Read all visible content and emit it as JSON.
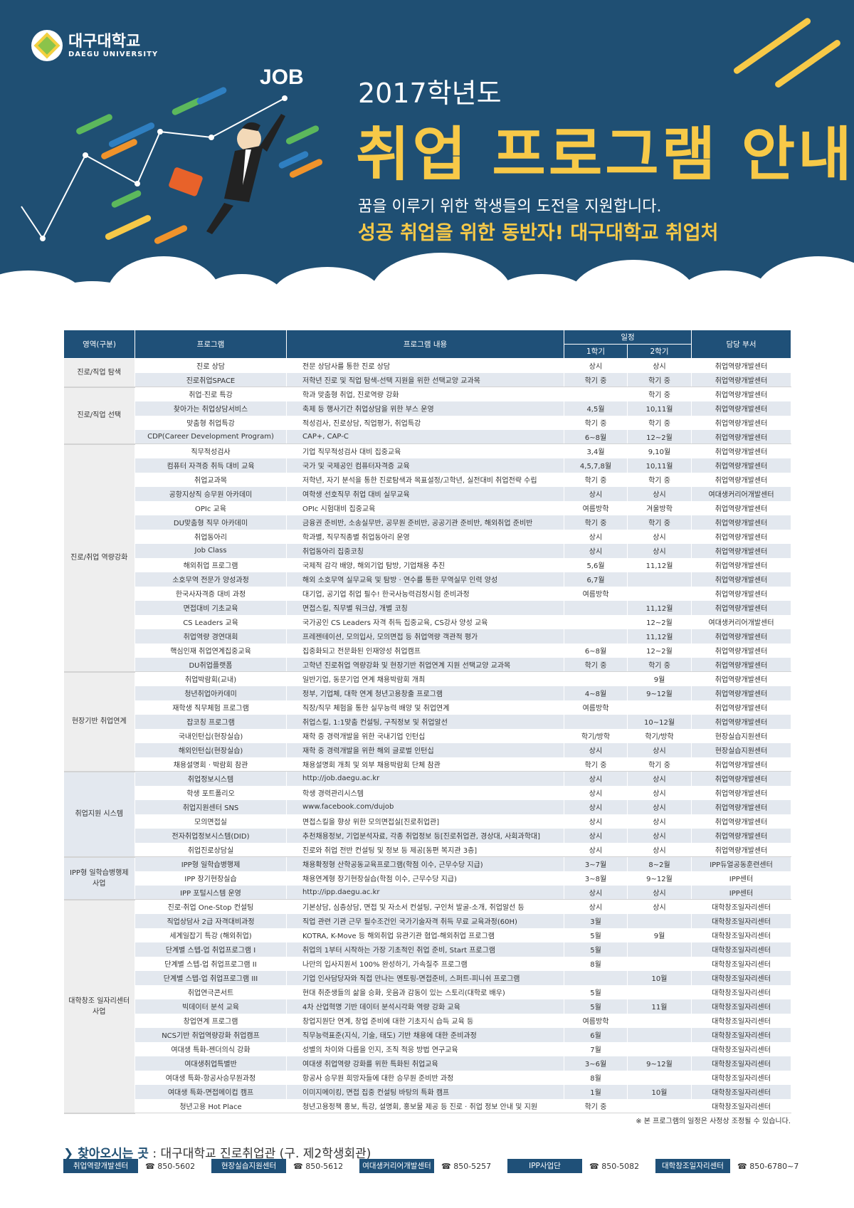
{
  "header": {
    "logo_ko": "대구대학교",
    "logo_en": "DAEGU UNIVERSITY",
    "job_label": "JOB",
    "year": "2017학년도",
    "title": "취업 프로그램 안내",
    "subtitle": "꿈을 이루기 위한 학생들의 도전을 지원합니다.",
    "tagline": "성공 취업을 위한 동반자! 대구대학교 취업처"
  },
  "colors": {
    "navy": "#1f4f73",
    "table_header": "#1f5078",
    "accent_yellow": "#f7c948",
    "row_alt": "#e3e8ef"
  },
  "table": {
    "headers": {
      "area": "영역(구분)",
      "program": "프로그램",
      "content": "프로그램 내용",
      "schedule": "일정",
      "sem1": "1학기",
      "sem2": "2학기",
      "dept": "담당 부서"
    },
    "groups": [
      {
        "name": "진로/직업 탐색",
        "rows": [
          [
            "진로 상담",
            "전문 상담사를 통한 진로 상담",
            "상시",
            "상시",
            "취업역량개발센터"
          ],
          [
            "진로취업SPACE",
            "저학년 진로 및 직업 탐색-선택 지원을 위한 선택교양 교과목",
            "학기 중",
            "학기 중",
            "취업역량개발센터"
          ]
        ]
      },
      {
        "name": "진로/직업 선택",
        "rows": [
          [
            "취업·진로 특강",
            "학과 맞춤형 취업, 진로역량 강화",
            "",
            "학기 중",
            "취업역량개발센터"
          ],
          [
            "찾아가는 취업상담서비스",
            "축제 등 행사기간 취업상담을 위한 부스 운영",
            "4,5월",
            "10,11월",
            "취업역량개발센터"
          ],
          [
            "맞춤형 취업특강",
            "적성검사, 진로상담, 직업평가, 취업특강",
            "학기 중",
            "학기 중",
            "취업역량개발센터"
          ],
          [
            "CDP(Career Development Program)",
            "CAP+, CAP-C",
            "6~8월",
            "12~2월",
            "취업역량개발센터"
          ]
        ]
      },
      {
        "name": "진로/취업 역량강화",
        "rows": [
          [
            "직무적성검사",
            "기업 직무적성검사 대비 집중교육",
            "3,4월",
            "9,10월",
            "취업역량개발센터"
          ],
          [
            "컴퓨터 자격증 취득 대비 교육",
            "국가 및 국제공인 컴퓨터자격증 교육",
            "4,5,7,8월",
            "10,11월",
            "취업역량개발센터"
          ],
          [
            "취업교과목",
            "저학년, 자기 분석을 통한 진로탐색과 목표설정/고학년, 실전대비 취업전략 수립",
            "학기 중",
            "학기 중",
            "취업역량개발센터"
          ],
          [
            "공항지상직 승무원 아카데미",
            "여학생 선호직무 취업 대비 실무교육",
            "상시",
            "상시",
            "여대생커리어개발센터"
          ],
          [
            "OPIc 교육",
            "OPIc 시험대비 집중교육",
            "여름방학",
            "겨울방학",
            "취업역량개발센터"
          ],
          [
            "DU맞춤형 직무 아카데미",
            "금융권 준비반, 소송실무반, 공무원 준비반, 공공기관 준비반, 해외취업 준비반",
            "학기 중",
            "학기 중",
            "취업역량개발센터"
          ],
          [
            "취업동아리",
            "학과별, 직무직종별 취업동아리 운영",
            "상시",
            "상시",
            "취업역량개발센터"
          ],
          [
            "Job Class",
            "취업동아리 집중코칭",
            "상시",
            "상시",
            "취업역량개발센터"
          ],
          [
            "해외취업 프로그램",
            "국제적 감각 배양, 해외기업 탐방, 기업채용 추진",
            "5,6월",
            "11,12월",
            "취업역량개발센터"
          ],
          [
            "소호무역 전문가 양성과정",
            "해외 소호무역 실무교육 및 탐방 · 연수를 통한 무역실무 인력 양성",
            "6,7월",
            "",
            "취업역량개발센터"
          ],
          [
            "한국사자격증 대비 과정",
            "대기업, 공기업 취업 필수! 한국사능력검정시험 준비과정",
            "여름방학",
            "",
            "취업역량개발센터"
          ],
          [
            "면접대비 기초교육",
            "면접스킬, 직무별 워크샵, 개별 코칭",
            "",
            "11,12월",
            "취업역량개발센터"
          ],
          [
            "CS Leaders 교육",
            "국가공인 CS Leaders 자격 취득 집중교육, CS강사 양성 교육",
            "",
            "12~2월",
            "여대생커리어개발센터"
          ],
          [
            "취업역량 경연대회",
            "프레젠테이션, 모의입사, 모의면접 등 취업역량 객관적 평가",
            "",
            "11,12월",
            "취업역량개발센터"
          ],
          [
            "핵심인재 취업연계집중교육",
            "집중화되고 전문화된 인재양성 취업캠프",
            "6~8월",
            "12~2월",
            "취업역량개발센터"
          ],
          [
            "DU취업플랫폼",
            "고학년 진로취업 역량강화 및 현장기반 취업연계 지원 선택교양 교과목",
            "학기 중",
            "학기 중",
            "취업역량개발센터"
          ]
        ]
      },
      {
        "name": "현장기반 취업연계",
        "rows": [
          [
            "취업박람회(교내)",
            "일반기업, 동문기업 연계 채용박람회 개최",
            "",
            "9월",
            "취업역량개발센터"
          ],
          [
            "청년취업아카데미",
            "정부, 기업체, 대학 연계 청년고용창출 프로그램",
            "4~8월",
            "9~12월",
            "취업역량개발센터"
          ],
          [
            "재학생 직무체험 프로그램",
            "직장/직무 체험을 통한 실무능력 배양 및 취업연계",
            "여름방학",
            "",
            "취업역량개발센터"
          ],
          [
            "잡코칭 프로그램",
            "취업스킬, 1:1맞춤 컨설팅, 구직정보 및 취업알선",
            "",
            "10~12월",
            "취업역량개발센터"
          ],
          [
            "국내인턴십(현장실습)",
            "재학 중 경력개발을 위한 국내기업 인턴십",
            "학기/방학",
            "학기/방학",
            "현장실습지원센터"
          ],
          [
            "해외인턴십(현장실습)",
            "재학 중 경력개발을 위한 해외 글로벌 인턴십",
            "상시",
            "상시",
            "현장실습지원센터"
          ],
          [
            "채용설명회 · 박람회 참관",
            "채용설명회 개최 및 외부 채용박람회 단체 참관",
            "학기 중",
            "학기 중",
            "취업역량개발센터"
          ]
        ]
      },
      {
        "name": "취업지원 시스템",
        "rows": [
          [
            "취업정보시스템",
            "http://job.daegu.ac.kr",
            "상시",
            "상시",
            "취업역량개발센터"
          ],
          [
            "학생 포트폴리오",
            "학생 경력관리시스템",
            "상시",
            "상시",
            "취업역량개발센터"
          ],
          [
            "취업지원센터 SNS",
            "www.facebook.com/dujob",
            "상시",
            "상시",
            "취업역량개발센터"
          ],
          [
            "모의면접실",
            "면접스킬을 향상 위한 모의면접실[진로취업관]",
            "상시",
            "상시",
            "취업역량개발센터"
          ],
          [
            "전자취업정보시스템(DID)",
            "추천채용정보, 기업분석자료, 각종 취업정보 등[진로취업관, 경상대, 사회과학대]",
            "상시",
            "상시",
            "취업역량개발센터"
          ],
          [
            "취업진로상담실",
            "진로와 취업 전반 컨설팅 및 정보 등 제공[동편 복지관 3층]",
            "상시",
            "상시",
            "취업역량개발센터"
          ]
        ]
      },
      {
        "name": "IPP형 일학습병행제 사업",
        "rows": [
          [
            "IPP형 일학습병행제",
            "채용확정형 산학공동교육프로그램(학점 이수, 근무수당 지급)",
            "3~7월",
            "8~2월",
            "IPP듀얼공동훈련센터"
          ],
          [
            "IPP 장기현장실습",
            "채용연계형 장기현장실습(학점 이수, 근무수당 지급)",
            "3~8월",
            "9~12월",
            "IPP센터"
          ],
          [
            "IPP 포털시스템 운영",
            "http://ipp.daegu.ac.kr",
            "상시",
            "상시",
            "IPP센터"
          ]
        ]
      },
      {
        "name": "대학창조 일자리센터 사업",
        "rows": [
          [
            "진로·취업 One-Stop 컨설팅",
            "기본상담, 심층상담, 면접 및 자소서 컨설팅, 구인처 발굴-소개, 취업알선 등",
            "상시",
            "상시",
            "대학창조일자리센터"
          ],
          [
            "직업상담사 2급 자격대비과정",
            "직업 관련 기관 근무 필수조건인 국가기술자격 취득 무료 교육과정(60H)",
            "3월",
            "",
            "대학창조일자리센터"
          ],
          [
            "세계일잡기 특강 (해외취업)",
            "KOTRA, K-Move 등 해외취업 유관기관 협업-해외취업 프로그램",
            "5월",
            "9월",
            "대학창조일자리센터"
          ],
          [
            "단계별 스텝-업 취업프로그램 I",
            "취업의 1부터 시작하는 가장 기초적인 취업 준비, Start 프로그램",
            "5월",
            "",
            "대학창조일자리센터"
          ],
          [
            "단계별 스텝-업 취업프로그램 II",
            "나만의 입사지원서 100% 완성하기, 가속질주 프로그램",
            "8월",
            "",
            "대학창조일자리센터"
          ],
          [
            "단계별 스텝-업 취업프로그램 III",
            "기업 인사담당자와 직접 만나는 멘토링-면접준비, 스퍼트-피니쉬 프로그램",
            "",
            "10월",
            "대학창조일자리센터"
          ],
          [
            "취업연극콘서트",
            "현대 취준생들의 삶을 승화, 웃음과 감동이 있는 스토리(대학로 배우)",
            "5월",
            "",
            "대학창조일자리센터"
          ],
          [
            "빅데이터 분석 교육",
            "4차 산업혁명 기반 데이터 분석시각화 역량 강화 교육",
            "5월",
            "11월",
            "대학창조일자리센터"
          ],
          [
            "창업연계 프로그램",
            "창업지원단 연계, 창업 준비에 대한 기초지식 습득 교육 등",
            "여름방학",
            "",
            "대학창조일자리센터"
          ],
          [
            "NCS기반 취업역량강화 취업캠프",
            "직무능력표준(지식, 기술, 태도) 기반 채용에 대한 준비과정",
            "6월",
            "",
            "대학창조일자리센터"
          ],
          [
            "여대생 특화-젠더의식 강화",
            "성별의 차이와 다름을 인지, 조직 적응 방법 연구교육",
            "7월",
            "",
            "대학창조일자리센터"
          ],
          [
            "여대생취업특별반",
            "여대생 취업역량 강화를 위한 특화된 취업교육",
            "3~6월",
            "9~12월",
            "대학창조일자리센터"
          ],
          [
            "여대생 특화-항공사승무원과정",
            "항공사 승무원 희망자들에 대한 승무원 준비반 과정",
            "8월",
            "",
            "대학창조일자리센터"
          ],
          [
            "여대생 특화-면접메이컵 캠프",
            "이미지메이킹, 면접 집중 컨설팅 바탕의 특화 캠프",
            "1월",
            "10월",
            "대학창조일자리센터"
          ],
          [
            "청년고용 Hot Place",
            "청년고용정책 홍보, 특강, 설명회, 홍보물 제공 등 진로 · 취업 정보 안내 및 지원",
            "학기 중",
            "",
            "대학창조일자리센터"
          ]
        ]
      }
    ]
  },
  "note": "※ 본 프로그램의 일정은 사정상 조정될 수 있습니다.",
  "footer": {
    "visit_label": "찾아오시는 곳",
    "visit_value": ": 대구대학교 진로취업관 (구. 제2학생회관)",
    "contacts": [
      {
        "name": "취업역량개발센터",
        "tel": "☎ 850-5602"
      },
      {
        "name": "현장실습지원센터",
        "tel": "☎ 850-5612"
      },
      {
        "name": "여대생커리어개발센터",
        "tel": "☎ 850-5257"
      },
      {
        "name": "IPP사업단",
        "tel": "☎ 850-5082"
      },
      {
        "name": "대학창조일자리센터",
        "tel": "☎ 850-6780~7"
      }
    ]
  }
}
